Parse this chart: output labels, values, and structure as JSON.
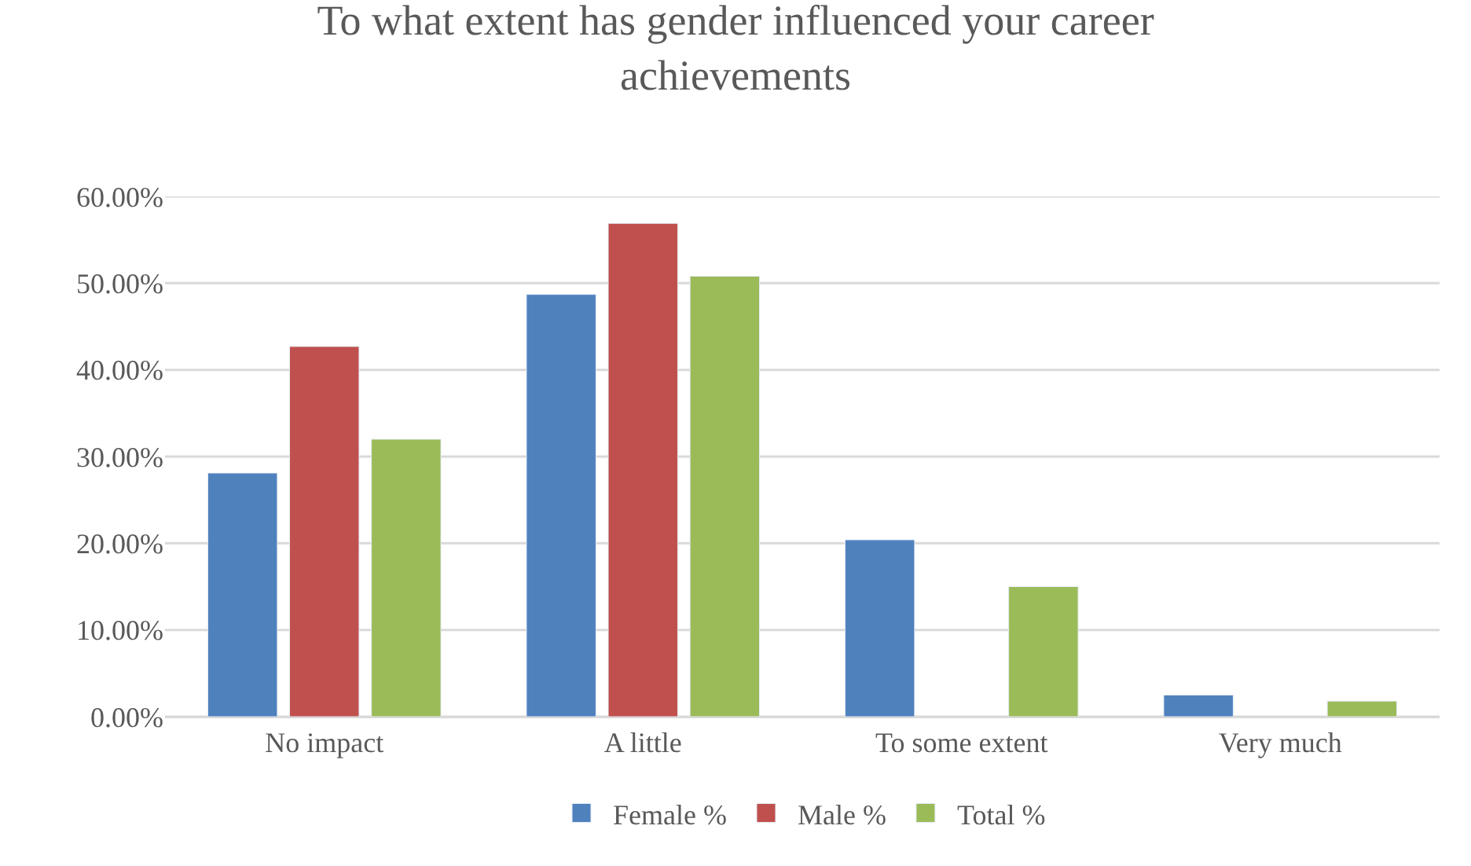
{
  "chart_data": {
    "type": "bar",
    "title": "To what extent has gender influenced your career achievements",
    "categories": [
      "No impact",
      "A little",
      "To some extent",
      "Very much"
    ],
    "series": [
      {
        "name": "Female %",
        "color": "#4f81bd",
        "values": [
          28.1,
          48.7,
          20.4,
          2.5
        ]
      },
      {
        "name": "Male %",
        "color": "#c0504d",
        "values": [
          42.7,
          56.9,
          null,
          null
        ]
      },
      {
        "name": "Total %",
        "color": "#9bbb59",
        "values": [
          32.0,
          50.8,
          15.0,
          1.8
        ]
      }
    ],
    "ylim": [
      0,
      60
    ],
    "yticks": [
      {
        "value": 0,
        "label": "0.00%"
      },
      {
        "value": 10,
        "label": "10.00%"
      },
      {
        "value": 20,
        "label": "20.00%"
      },
      {
        "value": 30,
        "label": "30.00%"
      },
      {
        "value": 40,
        "label": "40.00%"
      },
      {
        "value": 50,
        "label": "50.00%"
      },
      {
        "value": 60,
        "label": "60.00%"
      }
    ],
    "grid": "y",
    "legend": "bottom"
  }
}
